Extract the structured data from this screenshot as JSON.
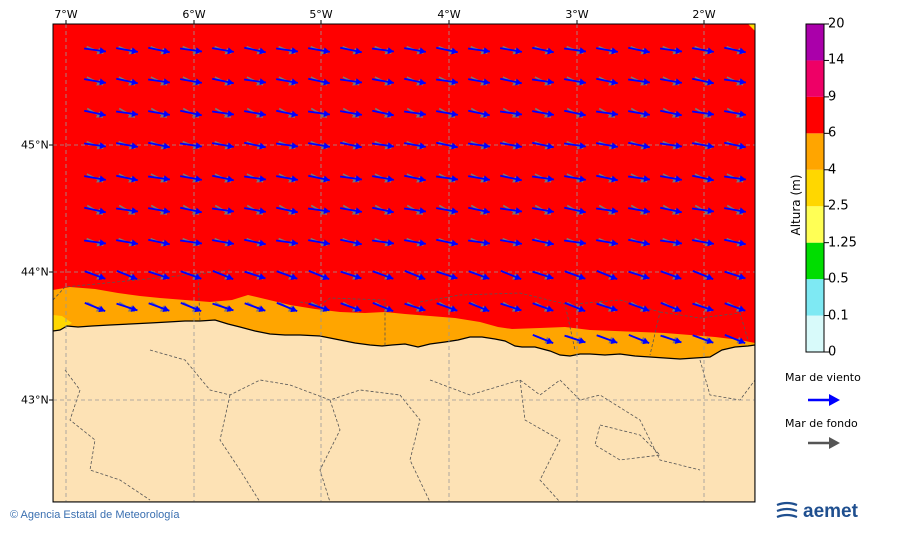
{
  "map": {
    "lon_ticks": [
      "7°W",
      "6°W",
      "5°W",
      "4°W",
      "3°W",
      "2°W"
    ],
    "lat_ticks": [
      "45°N",
      "44°N",
      "43°N"
    ],
    "colors": {
      "sea_main": "#ff0000",
      "coastal_band": "#ffa500",
      "inner_band": "#ffd700",
      "land": "#fde2b5",
      "wind_arrow": "#0000ff",
      "swell_arrow": "#777777"
    }
  },
  "colorbar": {
    "title": "Altura (m)",
    "levels": [
      "0",
      "0.1",
      "0.5",
      "1.25",
      "2.5",
      "4",
      "6",
      "9",
      "14",
      "20"
    ],
    "colors": [
      "#d8fafa",
      "#7ee9f3",
      "#00dd00",
      "#ffff55",
      "#ffd700",
      "#ffa500",
      "#ff0000",
      "#ee0066",
      "#aa00aa"
    ]
  },
  "legend": {
    "wind_label": "Mar de viento",
    "swell_label": "Mar de fondo"
  },
  "footer": {
    "credit": "© Agencia Estatal de Meteorología",
    "logo": "aemet"
  }
}
